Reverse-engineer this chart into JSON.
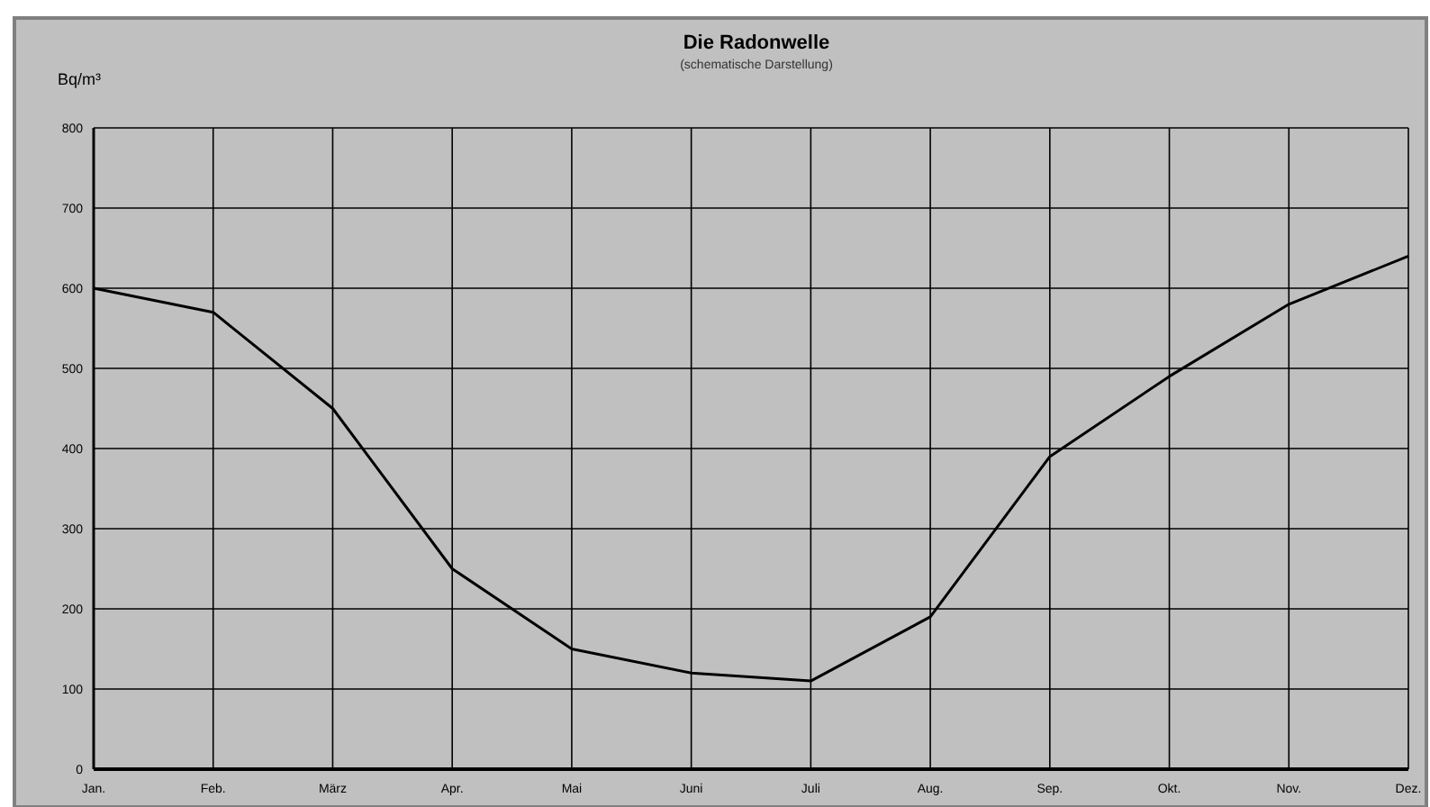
{
  "chart_data": {
    "type": "line",
    "title": "Die Radonwelle",
    "subtitle": "(schematische Darstellung)",
    "ylabel": "Bq/m³",
    "categories": [
      "Jan.",
      "Feb.",
      "März",
      "Apr.",
      "Mai",
      "Juni",
      "Juli",
      "Aug.",
      "Sep.",
      "Okt.",
      "Nov.",
      "Dez."
    ],
    "series": [
      {
        "color": "#000000",
        "values": [
          600,
          570,
          450,
          250,
          150,
          120,
          110,
          190,
          390,
          490,
          580,
          640
        ]
      }
    ],
    "ylim": [
      0,
      800
    ],
    "yticks": [
      0,
      100,
      200,
      300,
      400,
      500,
      600,
      700,
      800
    ],
    "grid": true,
    "marker": "none",
    "line_style": "solid"
  }
}
